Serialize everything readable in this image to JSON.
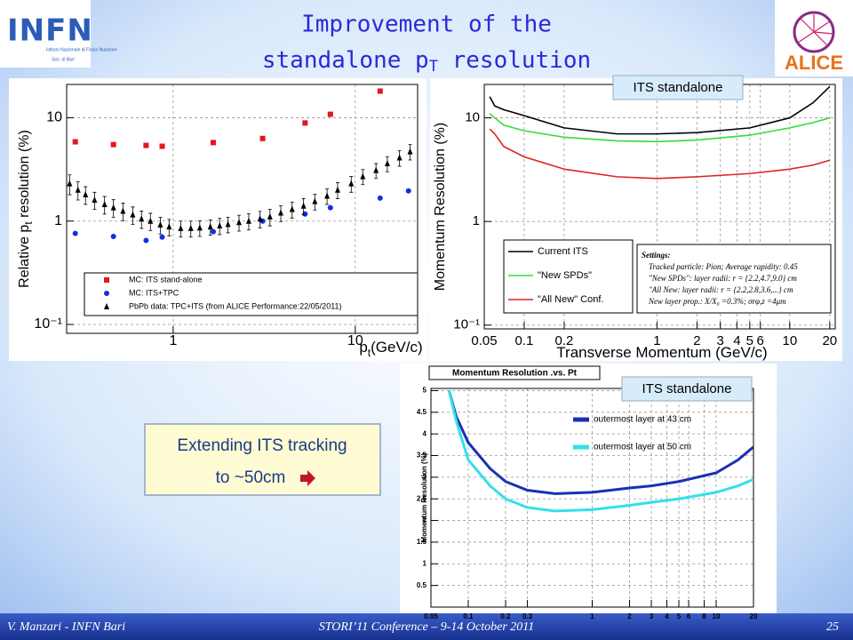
{
  "title": {
    "line1": "Improvement of the",
    "line2": "standalone p",
    "sub": "T",
    "line2_end": " resolution"
  },
  "logo_left": {
    "name": "INFN",
    "institute": "Istituto Nazionale di Fisica Nucleare",
    "section": "Sez. di Bari"
  },
  "logo_right": {
    "name": "ALICE"
  },
  "tags": [
    "ITS standalone",
    "ITS standalone"
  ],
  "callout": {
    "line1": "Extending ITS tracking",
    "line2": "to ~50cm"
  },
  "footer": {
    "left": "V. Manzari - INFN Bari",
    "center": "STORI’11 Conference – 9-14 October 2011",
    "page": "25"
  },
  "chart_data": [
    {
      "type": "scatter",
      "xlog": true,
      "ylog": true,
      "grid": true,
      "xlim": [
        0.26,
        22
      ],
      "ylim": [
        0.082,
        21
      ],
      "xticks": [
        1,
        10
      ],
      "yticks": [
        {
          "value": 0.1,
          "label": "10⁻¹"
        },
        1,
        10
      ],
      "ylabel": "Relative p",
      "ylabel_sub": "t",
      "ylabel_end": " resolution (%)",
      "xlabel": "p",
      "xlabel_sub": "t",
      "xlabel_end": "(GeV/c)",
      "series": [
        {
          "name": "MC: ITS stand-alone",
          "color": "#e8141c",
          "marker": "square",
          "x": [
            0.29,
            0.47,
            0.71,
            0.87,
            1.66,
            3.1,
            5.3,
            7.3,
            13.7
          ],
          "values": [
            5.85,
            5.5,
            5.4,
            5.3,
            5.75,
            6.3,
            8.9,
            10.8,
            18.1
          ]
        },
        {
          "name": "MC: ITS+TPC",
          "color": "#1030e0",
          "marker": "circle",
          "x": [
            0.29,
            0.47,
            0.71,
            0.87,
            1.66,
            3.1,
            5.3,
            7.3,
            13.7,
            19.6
          ],
          "values": [
            0.76,
            0.71,
            0.65,
            0.7,
            0.79,
            1.0,
            1.17,
            1.35,
            1.67,
            1.96
          ]
        },
        {
          "name": "PbPb data: TPC+ITS (from ALICE Performance:22/05/2011)",
          "color": "#000000",
          "marker": "triangle",
          "x": [
            0.27,
            0.3,
            0.33,
            0.37,
            0.42,
            0.47,
            0.53,
            0.6,
            0.67,
            0.75,
            0.85,
            0.95,
            1.1,
            1.25,
            1.4,
            1.6,
            1.8,
            2.0,
            2.3,
            2.6,
            3.0,
            3.4,
            3.9,
            4.5,
            5.2,
            6,
            7,
            8,
            9.5,
            11,
            13,
            15,
            17.5,
            20
          ],
          "values": [
            2.3,
            2.0,
            1.8,
            1.6,
            1.45,
            1.35,
            1.25,
            1.15,
            1.05,
            1.0,
            0.92,
            0.88,
            0.85,
            0.85,
            0.86,
            0.88,
            0.9,
            0.93,
            0.97,
            1.0,
            1.05,
            1.1,
            1.2,
            1.3,
            1.4,
            1.55,
            1.75,
            2.0,
            2.3,
            2.7,
            3.1,
            3.6,
            4.1,
            4.7
          ],
          "errors": [
            0.5,
            0.4,
            0.35,
            0.3,
            0.28,
            0.26,
            0.24,
            0.22,
            0.2,
            0.19,
            0.17,
            0.16,
            0.15,
            0.15,
            0.15,
            0.15,
            0.16,
            0.16,
            0.17,
            0.18,
            0.19,
            0.2,
            0.21,
            0.23,
            0.25,
            0.27,
            0.3,
            0.35,
            0.4,
            0.45,
            0.5,
            0.6,
            0.7,
            0.8
          ]
        }
      ]
    },
    {
      "type": "line",
      "xlog": true,
      "ylog": true,
      "grid": true,
      "xlim": [
        0.05,
        22
      ],
      "ylim": [
        0.092,
        21
      ],
      "xticks": [
        0.05,
        0.1,
        0.2,
        1,
        2,
        3,
        4,
        5,
        6,
        10,
        20
      ],
      "yticks": [
        {
          "value": 0.1,
          "label": "10⁻¹"
        },
        1,
        10
      ],
      "xlabel": "Transverse Momentum (GeV/c)",
      "ylabel": "Momentum Resolution (%)",
      "x": [
        0.055,
        0.06,
        0.07,
        0.1,
        0.2,
        0.5,
        1,
        2,
        5,
        10,
        15,
        20
      ],
      "series": [
        {
          "name": "Current ITS",
          "color": "#000000",
          "values": [
            16,
            13,
            12,
            10.5,
            8,
            7,
            7,
            7.2,
            8,
            10,
            14,
            20
          ]
        },
        {
          "name": "\"New SPDs\"",
          "color": "#33dd33",
          "values": [
            11,
            10,
            8.5,
            7.5,
            6.5,
            6,
            5.9,
            6.1,
            6.8,
            8,
            9,
            10
          ]
        },
        {
          "name": "\"All New\" Conf.",
          "color": "#dd2222",
          "values": [
            7.8,
            7,
            5.3,
            4.2,
            3.2,
            2.7,
            2.6,
            2.7,
            2.9,
            3.2,
            3.5,
            3.9
          ]
        }
      ],
      "notes": [
        "Settings:",
        "Tracked particle: Pion;   Average rapidity: 0.45",
        "\"New SPDs\": layer radii: r = {2.2,4.7,9.0} cm",
        "\"All New: layer radii: r = {2.2,2.8,3.6,...} cm",
        "New layer prop.: X/X₀ =0.3%;  σrφ,z =4μm"
      ]
    },
    {
      "type": "line",
      "xlog": true,
      "ylog": false,
      "grid": true,
      "title": "Momentum Resolution .vs. Pt",
      "xlim": [
        0.05,
        20
      ],
      "ylim": [
        0,
        5.05
      ],
      "xticks": [
        0.05,
        0.1,
        0.2,
        0.3,
        1,
        2,
        3,
        4,
        5,
        6,
        8,
        10,
        20
      ],
      "yticks": [
        0.5,
        1,
        1.5,
        2,
        2.5,
        3,
        3.5,
        4,
        4.5,
        5
      ],
      "ylabel": "Momentum Resolution (%)",
      "x": [
        0.07,
        0.08,
        0.1,
        0.15,
        0.2,
        0.3,
        0.5,
        1,
        2,
        3,
        5,
        10,
        15,
        20
      ],
      "series": [
        {
          "name": "outermost layer at 43 cm",
          "color": "#1a2fb8",
          "values": [
            5,
            4.4,
            3.8,
            3.2,
            2.9,
            2.7,
            2.62,
            2.65,
            2.75,
            2.8,
            2.9,
            3.1,
            3.4,
            3.7
          ]
        },
        {
          "name": "outermost layer at 50 cm",
          "color": "#33e0e8",
          "values": [
            5,
            4.3,
            3.4,
            2.8,
            2.5,
            2.3,
            2.22,
            2.25,
            2.35,
            2.42,
            2.5,
            2.65,
            2.8,
            2.95
          ]
        }
      ]
    }
  ]
}
